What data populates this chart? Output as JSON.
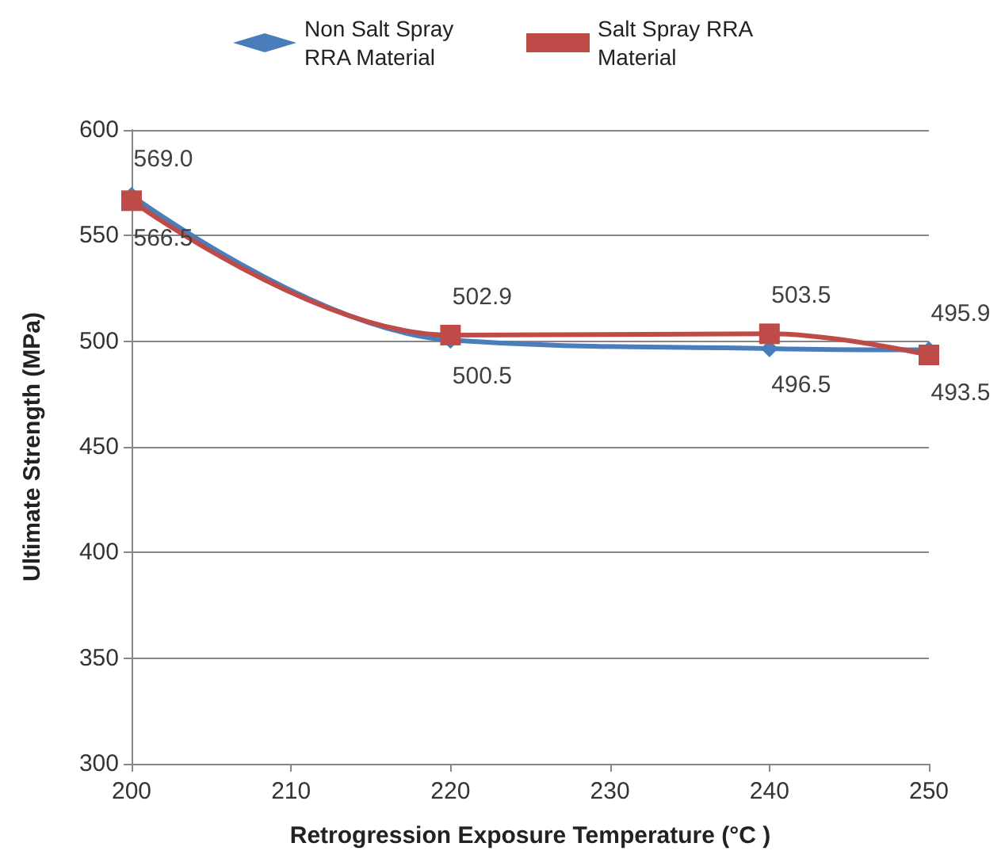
{
  "chart_data": {
    "type": "line",
    "xlabel": "Retrogression Exposure Temperature (°C )",
    "ylabel": "Ultimate Strength (MPa)",
    "xlim": [
      200,
      250
    ],
    "xticks": [
      200,
      210,
      220,
      230,
      240,
      250
    ],
    "ylim": [
      300,
      600
    ],
    "yticks": [
      300,
      350,
      400,
      450,
      500,
      550,
      600
    ],
    "grid": "y",
    "legend": "top",
    "line_style": "solid",
    "x": [
      200,
      220,
      240,
      250
    ],
    "series": [
      {
        "name": "Non Salt Spray RRA Material",
        "color": "#4a7ebb",
        "marker": "diamond",
        "values": [
          569.0,
          500.5,
          496.5,
          495.9
        ],
        "value_labels": [
          "569.0",
          "500.5",
          "496.5",
          "495.9"
        ]
      },
      {
        "name": "Salt Spray RRA Material",
        "color": "#be4b48",
        "marker": "square",
        "values": [
          566.5,
          502.9,
          503.5,
          493.5
        ],
        "value_labels": [
          "566.5",
          "502.9",
          "503.5",
          "493.5"
        ]
      }
    ]
  }
}
